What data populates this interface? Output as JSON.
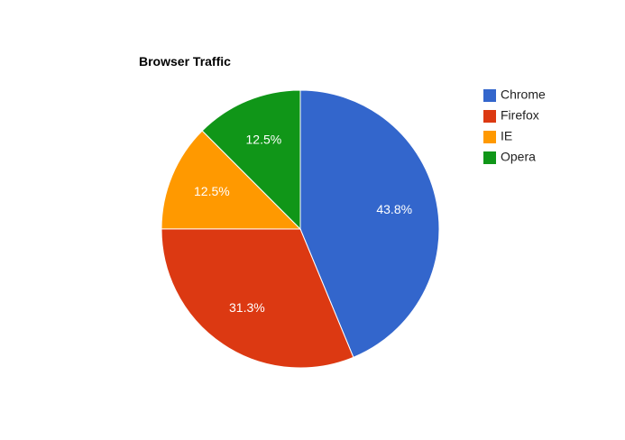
{
  "chart_data": {
    "type": "pie",
    "title": "Browser Traffic",
    "slices": [
      {
        "label": "Chrome",
        "value": 43.8,
        "display": "43.8%",
        "color": "#3366cc"
      },
      {
        "label": "Firefox",
        "value": 31.3,
        "display": "31.3%",
        "color": "#dc3912"
      },
      {
        "label": "IE",
        "value": 12.5,
        "display": "12.5%",
        "color": "#ff9900"
      },
      {
        "label": "Opera",
        "value": 12.5,
        "display": "12.5%",
        "color": "#109618"
      }
    ],
    "legend_position": "right"
  }
}
